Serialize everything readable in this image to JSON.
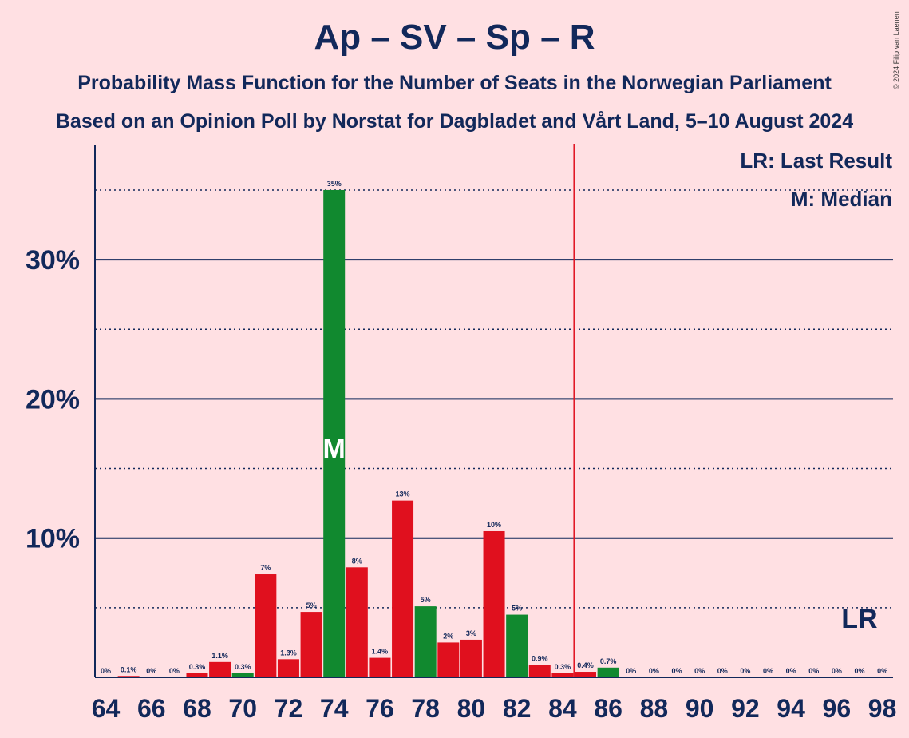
{
  "title": "Ap – SV – Sp – R",
  "subtitle": "Probability Mass Function for the Number of Seats in the Norwegian Parliament",
  "subtitle2": "Based on an Opinion Poll by Norstat for Dagbladet and Vårt Land, 5–10 August 2024",
  "copyright": "© 2024 Filip van Laenen",
  "legend": {
    "last_result": "LR: Last Result",
    "median": "M: Median"
  },
  "colors": {
    "background": "#ffe0e3",
    "red_bar": "#e0101e",
    "green_bar": "#11892f",
    "text": "#12285a",
    "majority_line": "#e0101e"
  },
  "chart_data": {
    "type": "bar",
    "xlabel": "",
    "ylabel": "",
    "ylim": [
      0,
      38
    ],
    "y_ticks": [
      {
        "value": 10,
        "label": "10%"
      },
      {
        "value": 20,
        "label": "20%"
      },
      {
        "value": 30,
        "label": "30%"
      }
    ],
    "grid_minor": [
      5,
      15,
      25,
      35
    ],
    "x_tick_labels": [
      "64",
      "66",
      "68",
      "70",
      "72",
      "74",
      "76",
      "78",
      "80",
      "82",
      "84",
      "86",
      "88",
      "90",
      "92",
      "94",
      "96",
      "98"
    ],
    "x_tick_values": [
      64,
      66,
      68,
      70,
      72,
      74,
      76,
      78,
      80,
      82,
      84,
      86,
      88,
      90,
      92,
      94,
      96,
      98
    ],
    "majority_line": 84.5,
    "median": {
      "seat": 74,
      "label": "M"
    },
    "last_result": {
      "seat": 97,
      "label": "LR"
    },
    "bars": [
      {
        "seat": 64,
        "value": 0,
        "label": "0%",
        "color": "red"
      },
      {
        "seat": 65,
        "value": 0.1,
        "label": "0.1%",
        "color": "red"
      },
      {
        "seat": 66,
        "value": 0,
        "label": "0%",
        "color": "red"
      },
      {
        "seat": 67,
        "value": 0,
        "label": "0%",
        "color": "red"
      },
      {
        "seat": 68,
        "value": 0.3,
        "label": "0.3%",
        "color": "red"
      },
      {
        "seat": 69,
        "value": 1.1,
        "label": "1.1%",
        "color": "red"
      },
      {
        "seat": 70,
        "value": 0.3,
        "label": "0.3%",
        "color": "green"
      },
      {
        "seat": 71,
        "value": 7.4,
        "label": "7%",
        "color": "red"
      },
      {
        "seat": 72,
        "value": 1.3,
        "label": "1.3%",
        "color": "red"
      },
      {
        "seat": 73,
        "value": 4.7,
        "label": "5%",
        "color": "red"
      },
      {
        "seat": 74,
        "value": 35,
        "label": "35%",
        "color": "green"
      },
      {
        "seat": 75,
        "value": 7.9,
        "label": "8%",
        "color": "red"
      },
      {
        "seat": 76,
        "value": 1.4,
        "label": "1.4%",
        "color": "red"
      },
      {
        "seat": 77,
        "value": 12.7,
        "label": "13%",
        "color": "red"
      },
      {
        "seat": 78,
        "value": 5.1,
        "label": "5%",
        "color": "green"
      },
      {
        "seat": 79,
        "value": 2.5,
        "label": "2%",
        "color": "red"
      },
      {
        "seat": 80,
        "value": 2.7,
        "label": "3%",
        "color": "red"
      },
      {
        "seat": 81,
        "value": 10.5,
        "label": "10%",
        "color": "red"
      },
      {
        "seat": 82,
        "value": 4.5,
        "label": "5%",
        "color": "green"
      },
      {
        "seat": 83,
        "value": 0.9,
        "label": "0.9%",
        "color": "red"
      },
      {
        "seat": 84,
        "value": 0.3,
        "label": "0.3%",
        "color": "red"
      },
      {
        "seat": 85,
        "value": 0.4,
        "label": "0.4%",
        "color": "red"
      },
      {
        "seat": 86,
        "value": 0.7,
        "label": "0.7%",
        "color": "green"
      },
      {
        "seat": 87,
        "value": 0,
        "label": "0%",
        "color": "red"
      },
      {
        "seat": 88,
        "value": 0,
        "label": "0%",
        "color": "red"
      },
      {
        "seat": 89,
        "value": 0,
        "label": "0%",
        "color": "red"
      },
      {
        "seat": 90,
        "value": 0,
        "label": "0%",
        "color": "red"
      },
      {
        "seat": 91,
        "value": 0,
        "label": "0%",
        "color": "red"
      },
      {
        "seat": 92,
        "value": 0,
        "label": "0%",
        "color": "red"
      },
      {
        "seat": 93,
        "value": 0,
        "label": "0%",
        "color": "red"
      },
      {
        "seat": 94,
        "value": 0,
        "label": "0%",
        "color": "red"
      },
      {
        "seat": 95,
        "value": 0,
        "label": "0%",
        "color": "red"
      },
      {
        "seat": 96,
        "value": 0,
        "label": "0%",
        "color": "red"
      },
      {
        "seat": 97,
        "value": 0,
        "label": "0%",
        "color": "red"
      },
      {
        "seat": 98,
        "value": 0,
        "label": "0%",
        "color": "red"
      }
    ]
  }
}
